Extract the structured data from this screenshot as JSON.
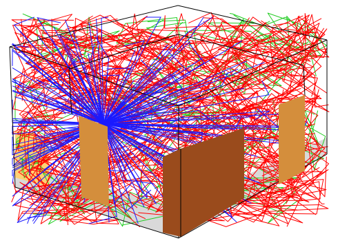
{
  "figure": {
    "type": "3d-ray-trace-room",
    "background_color": "#ffffff",
    "floor_color": "#d9d9d9",
    "edge_color": "#000000",
    "ray_colors": {
      "red": "#ff0000",
      "green": "#22cc22",
      "blue": "#1a1aff"
    },
    "obstacle_colors": {
      "pale": "#ffd074",
      "medium": "#d48e3c",
      "dark": "#9a4b1c"
    },
    "obstacles": [
      {
        "name": "left-wall-panel",
        "shade": "pale"
      },
      {
        "name": "left-pillar",
        "shade": "medium"
      },
      {
        "name": "front-block",
        "shade": "dark"
      },
      {
        "name": "right-pillar",
        "shade": "medium"
      }
    ]
  }
}
